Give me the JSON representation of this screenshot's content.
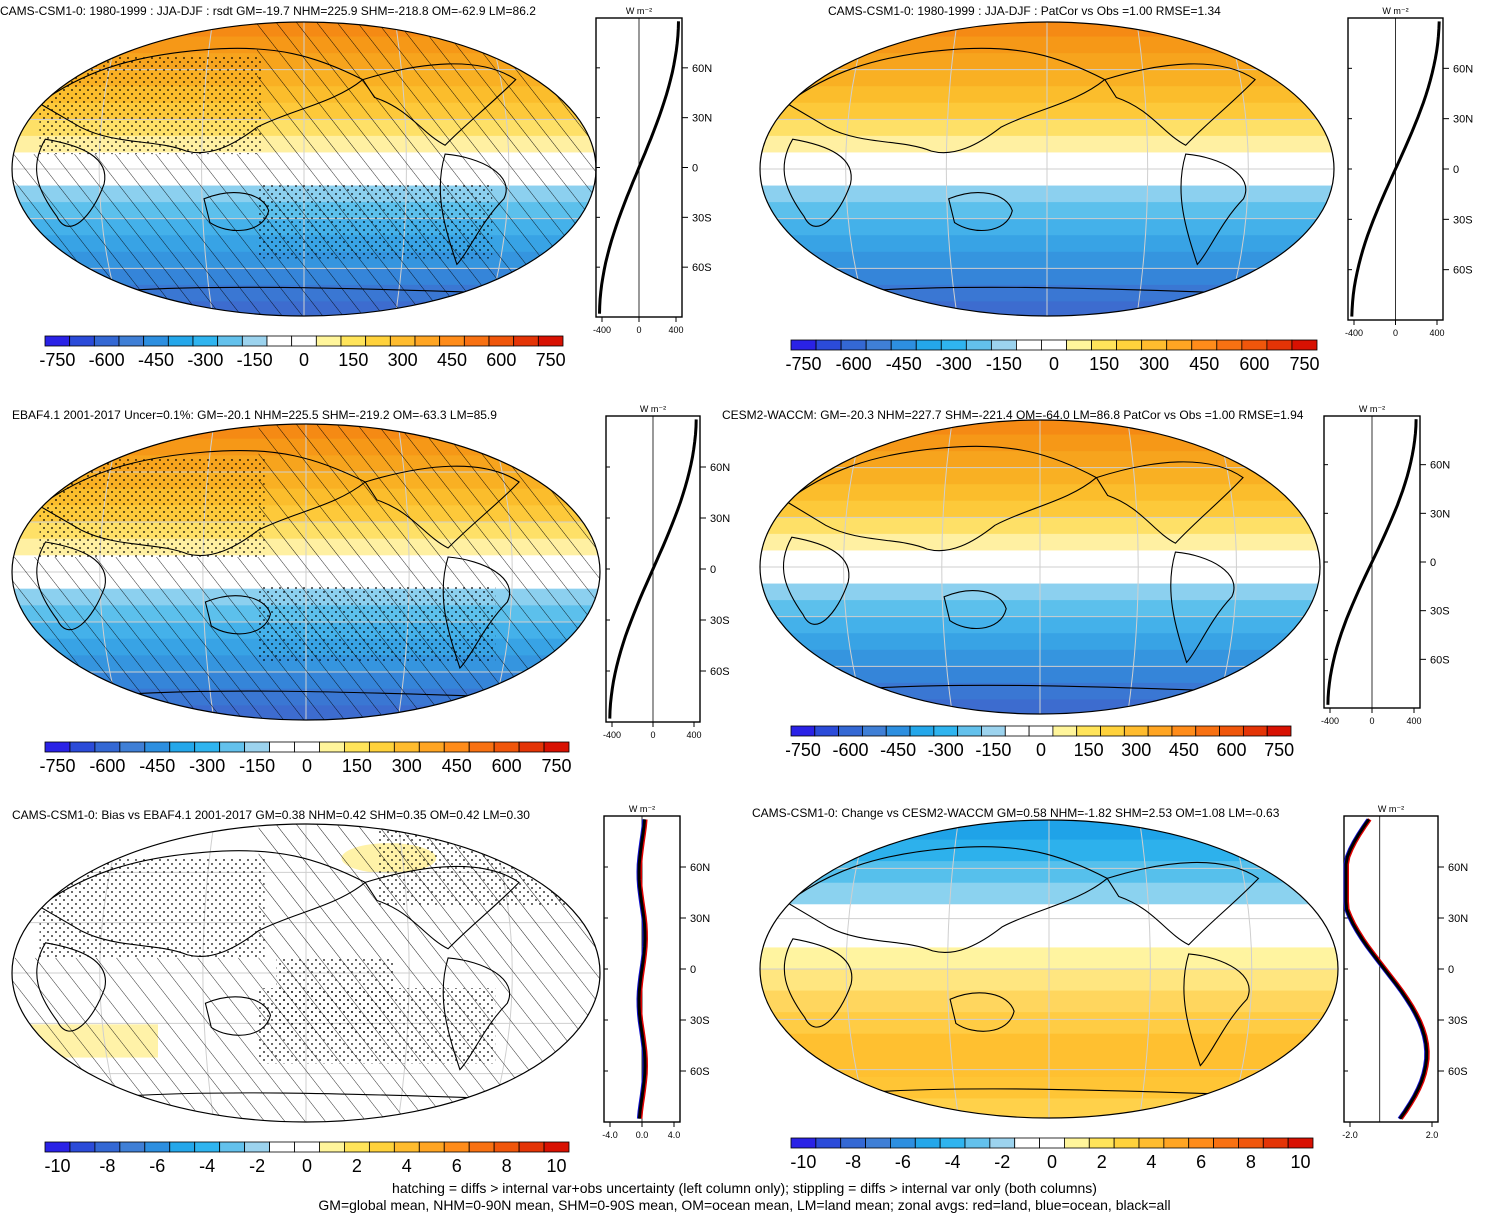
{
  "panels": [
    {
      "title": "CAMS-CSM1-0: 1980-1999 : JJA-DJF : rsdt GM=-19.7 NHM=225.9 SHM=-218.8 OM=-62.9 LM=86.2",
      "kind": "mean",
      "hatch": true,
      "stipple": true
    },
    {
      "title": "CAMS-CSM1-0: 1980-1999 : JJA-DJF : PatCor vs Obs =1.00 RMSE=1.34",
      "kind": "mean",
      "hatch": false,
      "stipple": false
    },
    {
      "title": "EBAF4.1 2001-2017 Uncer=0.1%: GM=-20.1 NHM=225.5 SHM=-219.2 OM=-63.3 LM=85.9",
      "kind": "mean",
      "hatch": true,
      "stipple": true
    },
    {
      "title": "CESM2-WACCM: GM=-20.3 NHM=227.7 SHM=-221.4 OM=-64.0 LM=86.8 PatCor vs Obs =1.00 RMSE=1.94",
      "kind": "mean",
      "hatch": false,
      "stipple": false
    },
    {
      "title": "CAMS-CSM1-0: Bias vs EBAF4.1 2001-2017 GM=0.38 NHM=0.42 SHM=0.35 OM=0.42 LM=0.30",
      "kind": "bias",
      "hatch": true,
      "stipple": true
    },
    {
      "title": "CAMS-CSM1-0: Change vs CESM2-WACCM GM=0.58 NHM=-1.82 SHM=2.53 OM=1.08 LM=-0.63",
      "kind": "change",
      "hatch": false,
      "stipple": false
    }
  ],
  "profile": {
    "units": "W m⁻²",
    "lat_labels": [
      "60N",
      "30N",
      "0",
      "30S",
      "60S"
    ],
    "mean_x_labels": [
      "-400",
      "0",
      "400"
    ],
    "bias_x_labels": [
      "-4.0",
      "0.0",
      "4.0"
    ],
    "change_x_labels": [
      "-2.0",
      "2.0"
    ]
  },
  "colorbars": {
    "mean_labels": [
      "-750",
      "-600",
      "-450",
      "-300",
      "-150",
      "0",
      "150",
      "300",
      "450",
      "600",
      "750"
    ],
    "diff_labels": [
      "-10",
      "-8",
      "-6",
      "-4",
      "-2",
      "0",
      "2",
      "4",
      "6",
      "8",
      "10"
    ],
    "colors": [
      "#2a22e6",
      "#2b4bd9",
      "#3468d4",
      "#3f7fd6",
      "#2d8fe0",
      "#24a7ea",
      "#2fb4ef",
      "#63c1ec",
      "#9cd3ee",
      "#ffffff",
      "#ffffff",
      "#fff59b",
      "#ffe45a",
      "#ffd23c",
      "#ffbc2e",
      "#ffa523",
      "#ff8c1a",
      "#f87112",
      "#f0560b",
      "#e43406",
      "#d81102"
    ]
  },
  "footer": {
    "line1": "hatching = diffs > internal var+obs uncertainty (left column only); stippling = diffs > internal var only (both columns)",
    "line2": "GM=global mean, NHM=0-90N mean, SHM=0-90S mean, OM=ocean mean, LM=land mean; zonal avgs: red=land, blue=ocean, black=all"
  }
}
